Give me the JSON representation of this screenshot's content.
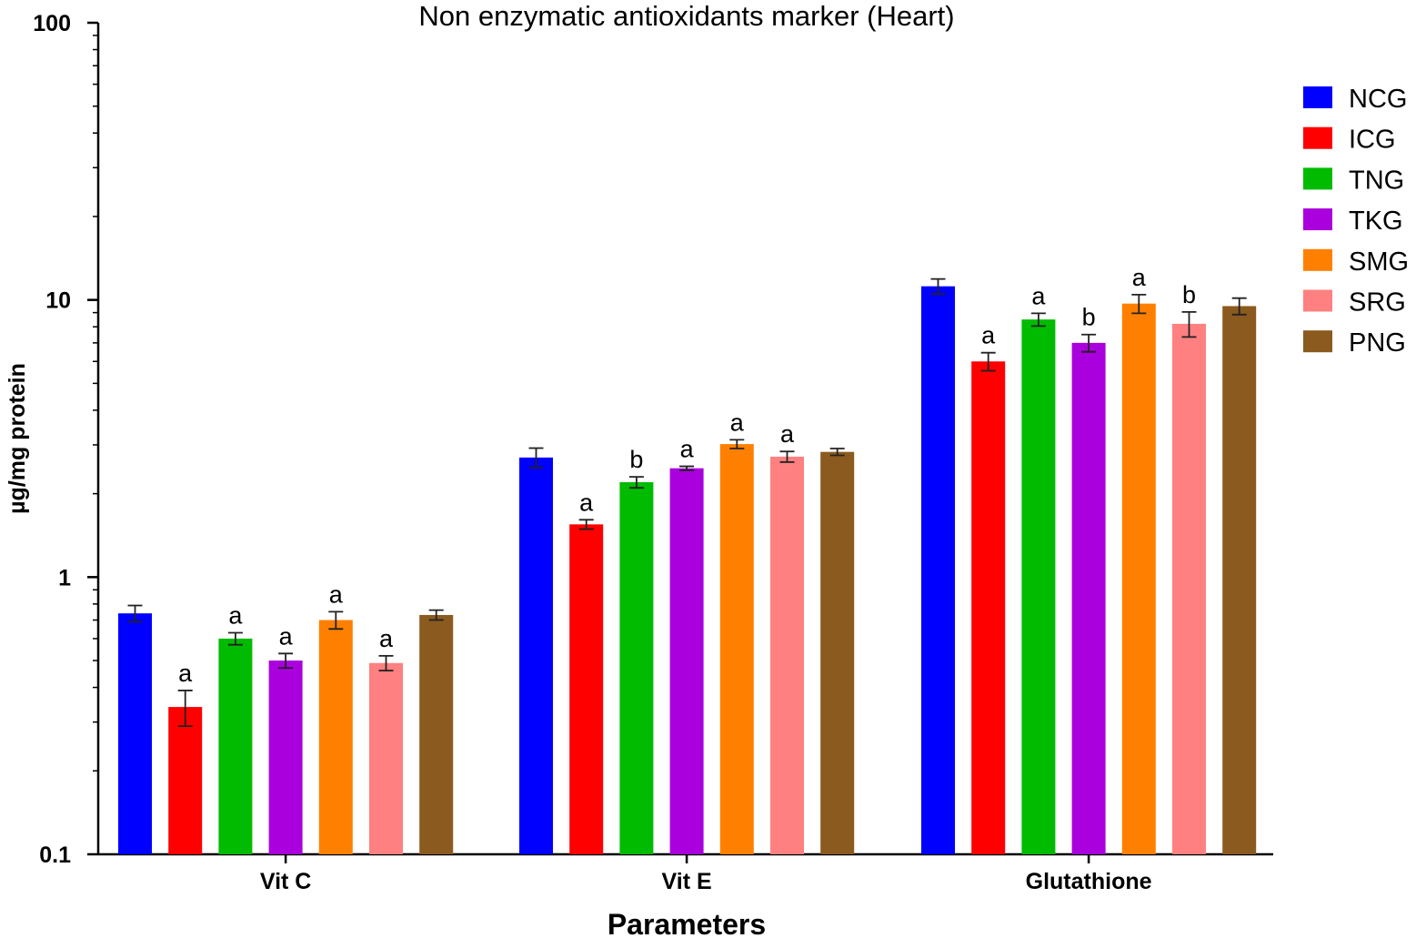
{
  "chart_data": {
    "type": "bar",
    "title": "Non enzymatic antioxidants marker (Heart)",
    "xlabel": "Parameters",
    "ylabel": "µg/mg protein",
    "yscale": "log",
    "ylim": [
      0.1,
      100
    ],
    "yticks": [
      "0.1",
      "1",
      "10",
      "100"
    ],
    "grid": false,
    "legend_position": "right",
    "categories": [
      "Vit C",
      "Vit E",
      "Glutathione"
    ],
    "series": [
      {
        "name": "NCG",
        "color": "#0000ff",
        "values": [
          0.74,
          2.7,
          11.2
        ],
        "errors": [
          0.05,
          0.22,
          0.7
        ],
        "labels": [
          "",
          "",
          ""
        ]
      },
      {
        "name": "ICG",
        "color": "#ff0000",
        "values": [
          0.34,
          1.55,
          6.0
        ],
        "errors": [
          0.05,
          0.06,
          0.45
        ],
        "labels": [
          "a",
          "a",
          "a"
        ]
      },
      {
        "name": "TNG",
        "color": "#00bb00",
        "values": [
          0.6,
          2.2,
          8.5
        ],
        "errors": [
          0.03,
          0.1,
          0.45
        ],
        "labels": [
          "a",
          "b",
          "a"
        ]
      },
      {
        "name": "TKG",
        "color": "#aa00dd",
        "values": [
          0.5,
          2.47,
          7.0
        ],
        "errors": [
          0.03,
          0.04,
          0.5
        ],
        "labels": [
          "a",
          "a",
          "b"
        ]
      },
      {
        "name": "SMG",
        "color": "#ff8000",
        "values": [
          0.7,
          3.02,
          9.7
        ],
        "errors": [
          0.05,
          0.11,
          0.75
        ],
        "labels": [
          "a",
          "a",
          "a"
        ]
      },
      {
        "name": "SRG",
        "color": "#ff8080",
        "values": [
          0.49,
          2.72,
          8.2
        ],
        "errors": [
          0.03,
          0.12,
          0.85
        ],
        "labels": [
          "a",
          "a",
          "b"
        ]
      },
      {
        "name": "PNG",
        "color": "#8b5a1e",
        "values": [
          0.73,
          2.83,
          9.5
        ],
        "errors": [
          0.03,
          0.08,
          0.65
        ],
        "labels": [
          "",
          "",
          ""
        ]
      }
    ]
  }
}
